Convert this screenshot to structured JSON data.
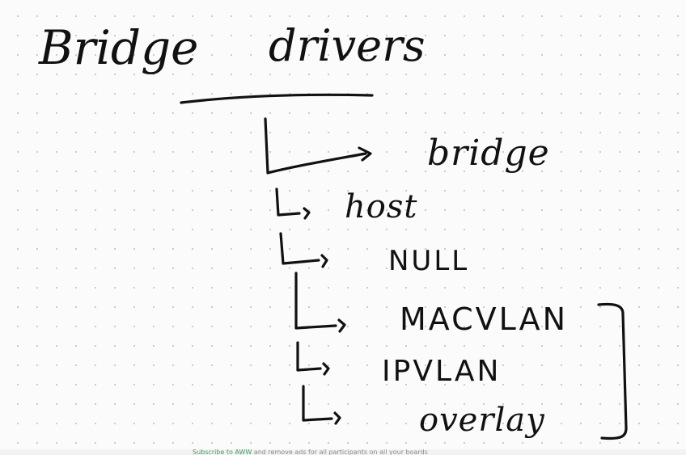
{
  "header": {
    "left_title": "Bridge",
    "right_title": "drivers"
  },
  "items": [
    {
      "label": "bridge"
    },
    {
      "label": "host"
    },
    {
      "label": "NULL"
    },
    {
      "label": "MACVLAN"
    },
    {
      "label": "IPVLAN"
    },
    {
      "label": "overlay"
    }
  ],
  "footer": {
    "link_label": "Subscribe to AWW",
    "text": "and remove ads for all participants on all your boards"
  },
  "colors": {
    "ink": "#111111",
    "background": "#fbfbfb",
    "grid_dots": "#c9c9c9",
    "footer_link": "#3aa15c"
  }
}
